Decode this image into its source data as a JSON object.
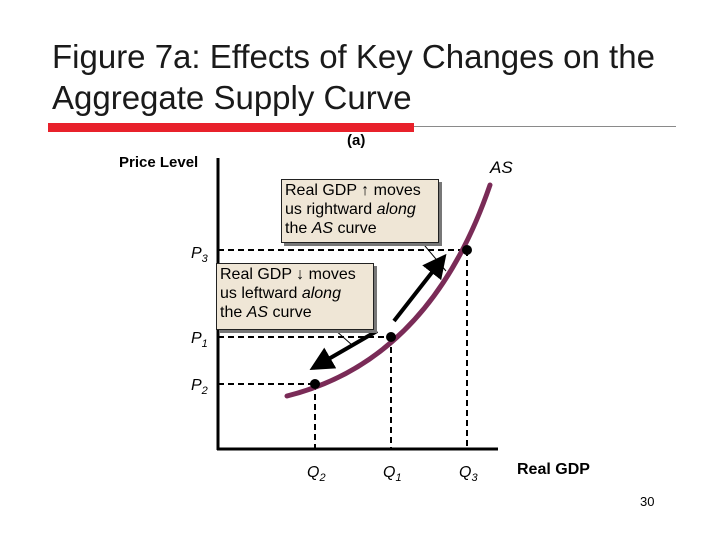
{
  "title": "Figure 7a:  Effects of Key Changes on the Aggregate Supply Curve",
  "panel_label": "(a)",
  "axes": {
    "y_label": "Price Level",
    "x_label": "Real GDP"
  },
  "curve_label": "AS",
  "price_levels": [
    {
      "main": "P",
      "sub": "3"
    },
    {
      "main": "P",
      "sub": "1"
    },
    {
      "main": "P",
      "sub": "2"
    }
  ],
  "quantities": [
    {
      "main": "Q",
      "sub": "2"
    },
    {
      "main": "Q",
      "sub": "1"
    },
    {
      "main": "Q",
      "sub": "3"
    }
  ],
  "callout_up": {
    "line1": "Real GDP ↑ moves",
    "line2_a": "us rightward ",
    "line2_b": "along",
    "line3_a": "the ",
    "line3_b": "AS",
    "line3_c": " curve"
  },
  "callout_down": {
    "line1": "Real GDP ↓ moves",
    "line2_a": "us leftward ",
    "line2_b": "along",
    "line3_a": "the ",
    "line3_b": "AS",
    "line3_c": " curve"
  },
  "page_number": "30",
  "colors": {
    "curve": "#7a2b57",
    "accent_red": "#e8212b"
  }
}
